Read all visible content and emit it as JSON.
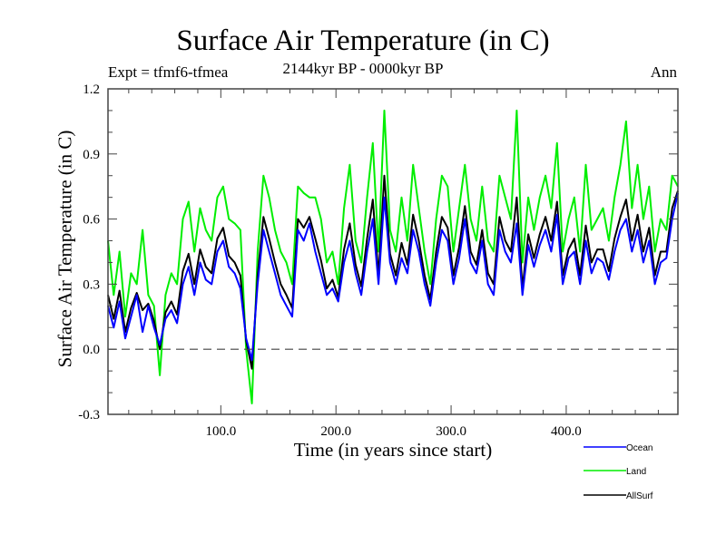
{
  "chart_data": {
    "type": "line",
    "title": "Surface Air Temperature (in C)",
    "subtitle": "2144kyr BP - 0000kyr BP",
    "left_label": "Expt = tfmf6-tfmea",
    "right_label": "Ann",
    "xlabel": "Time (in years since start)",
    "ylabel": "Surface Air Temperature (in C)",
    "xlim": [
      2,
      497
    ],
    "ylim": [
      -0.3,
      1.2
    ],
    "x_ticks": [
      100,
      200,
      300,
      400
    ],
    "x_tick_labels": [
      "100.0",
      "200.0",
      "300.0",
      "400.0"
    ],
    "x_minor_step": 20,
    "y_ticks": [
      -0.3,
      0.0,
      0.3,
      0.6,
      0.9,
      1.2
    ],
    "y_tick_labels": [
      "-0.3",
      "0.0",
      "0.3",
      "0.6",
      "0.9",
      "1.2"
    ],
    "y_minor_step": 0.1,
    "reference_line": {
      "y": 0.0,
      "style": "dashed"
    },
    "legend_position": "bottom-right",
    "x": [
      2,
      7,
      12,
      17,
      22,
      27,
      32,
      37,
      42,
      47,
      52,
      57,
      62,
      67,
      72,
      77,
      82,
      87,
      92,
      97,
      102,
      107,
      112,
      117,
      122,
      127,
      132,
      137,
      142,
      147,
      152,
      157,
      162,
      167,
      172,
      177,
      182,
      187,
      192,
      197,
      202,
      207,
      212,
      217,
      222,
      227,
      232,
      237,
      242,
      247,
      252,
      257,
      262,
      267,
      272,
      277,
      282,
      287,
      292,
      297,
      302,
      307,
      312,
      317,
      322,
      327,
      332,
      337,
      342,
      347,
      352,
      357,
      362,
      367,
      372,
      377,
      382,
      387,
      392,
      397,
      402,
      407,
      412,
      417,
      422,
      427,
      432,
      437,
      442,
      447,
      452,
      457,
      462,
      467,
      472,
      477,
      482,
      487,
      492,
      497
    ],
    "series": [
      {
        "name": "Ocean",
        "color": "#0000ff",
        "values": [
          0.2,
          0.1,
          0.22,
          0.05,
          0.15,
          0.25,
          0.08,
          0.2,
          0.1,
          0.02,
          0.14,
          0.18,
          0.12,
          0.3,
          0.38,
          0.25,
          0.4,
          0.32,
          0.3,
          0.45,
          0.5,
          0.38,
          0.35,
          0.28,
          0.05,
          -0.05,
          0.3,
          0.55,
          0.45,
          0.35,
          0.25,
          0.2,
          0.15,
          0.55,
          0.5,
          0.58,
          0.45,
          0.35,
          0.25,
          0.28,
          0.22,
          0.4,
          0.5,
          0.35,
          0.25,
          0.45,
          0.6,
          0.3,
          0.7,
          0.4,
          0.3,
          0.42,
          0.35,
          0.55,
          0.45,
          0.3,
          0.2,
          0.4,
          0.55,
          0.5,
          0.3,
          0.42,
          0.6,
          0.4,
          0.35,
          0.5,
          0.3,
          0.25,
          0.55,
          0.45,
          0.4,
          0.58,
          0.25,
          0.48,
          0.38,
          0.48,
          0.55,
          0.45,
          0.62,
          0.3,
          0.42,
          0.45,
          0.3,
          0.5,
          0.35,
          0.42,
          0.4,
          0.32,
          0.45,
          0.55,
          0.6,
          0.45,
          0.55,
          0.4,
          0.5,
          0.3,
          0.4,
          0.42,
          0.6,
          0.72
        ]
      },
      {
        "name": "Land",
        "color": "#00ee00",
        "values": [
          0.5,
          0.25,
          0.45,
          0.15,
          0.35,
          0.3,
          0.55,
          0.25,
          0.2,
          -0.12,
          0.25,
          0.35,
          0.3,
          0.6,
          0.68,
          0.45,
          0.65,
          0.55,
          0.5,
          0.7,
          0.75,
          0.6,
          0.58,
          0.55,
          0.0,
          -0.25,
          0.45,
          0.8,
          0.7,
          0.55,
          0.45,
          0.4,
          0.3,
          0.75,
          0.72,
          0.7,
          0.7,
          0.6,
          0.4,
          0.45,
          0.3,
          0.65,
          0.85,
          0.5,
          0.4,
          0.7,
          0.95,
          0.45,
          1.1,
          0.55,
          0.45,
          0.7,
          0.5,
          0.85,
          0.65,
          0.45,
          0.3,
          0.6,
          0.8,
          0.75,
          0.45,
          0.65,
          0.85,
          0.6,
          0.5,
          0.75,
          0.5,
          0.45,
          0.8,
          0.7,
          0.6,
          1.1,
          0.4,
          0.7,
          0.55,
          0.7,
          0.8,
          0.65,
          0.95,
          0.45,
          0.6,
          0.7,
          0.45,
          0.85,
          0.55,
          0.6,
          0.65,
          0.5,
          0.7,
          0.85,
          1.05,
          0.65,
          0.85,
          0.6,
          0.75,
          0.45,
          0.6,
          0.55,
          0.8,
          0.75
        ]
      },
      {
        "name": "AllSurf",
        "color": "#000000",
        "values": [
          0.25,
          0.14,
          0.27,
          0.08,
          0.19,
          0.26,
          0.18,
          0.21,
          0.13,
          0.0,
          0.17,
          0.22,
          0.16,
          0.36,
          0.44,
          0.3,
          0.46,
          0.38,
          0.35,
          0.51,
          0.56,
          0.43,
          0.4,
          0.34,
          0.04,
          -0.09,
          0.34,
          0.61,
          0.51,
          0.4,
          0.3,
          0.25,
          0.19,
          0.6,
          0.56,
          0.61,
          0.51,
          0.41,
          0.28,
          0.32,
          0.24,
          0.46,
          0.58,
          0.39,
          0.29,
          0.51,
          0.69,
          0.34,
          0.8,
          0.44,
          0.34,
          0.49,
          0.39,
          0.62,
          0.5,
          0.34,
          0.23,
          0.45,
          0.61,
          0.56,
          0.34,
          0.47,
          0.66,
          0.45,
          0.39,
          0.55,
          0.35,
          0.3,
          0.61,
          0.5,
          0.45,
          0.7,
          0.28,
          0.53,
          0.42,
          0.53,
          0.61,
          0.5,
          0.68,
          0.34,
          0.46,
          0.51,
          0.34,
          0.57,
          0.4,
          0.46,
          0.46,
          0.36,
          0.51,
          0.61,
          0.69,
          0.5,
          0.62,
          0.45,
          0.56,
          0.34,
          0.45,
          0.45,
          0.65,
          0.73
        ]
      }
    ]
  }
}
